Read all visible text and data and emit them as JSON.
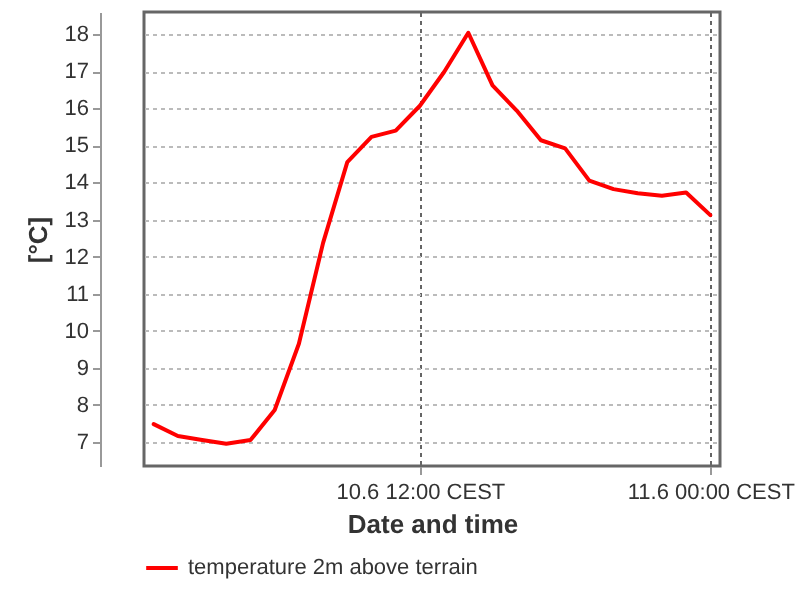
{
  "chart_data": {
    "type": "line",
    "xlabel": "Date and time",
    "ylabel": "[°C]",
    "categories": [
      null,
      null,
      null,
      null,
      null,
      null,
      null,
      null,
      null,
      null,
      null,
      "10.6 12:00 CEST",
      null,
      null,
      null,
      null,
      null,
      null,
      null,
      null,
      null,
      null,
      null,
      "11.6 00:00 CEST"
    ],
    "series": [
      {
        "name": "temperature 2m above terrain",
        "color": "#ff0000",
        "values": [
          7.48,
          7.16,
          7.05,
          6.95,
          7.05,
          7.86,
          9.65,
          12.37,
          14.55,
          15.23,
          15.4,
          16.07,
          16.98,
          18.04,
          16.62,
          15.94,
          15.14,
          14.92,
          14.05,
          13.82,
          13.71,
          13.64,
          13.73,
          13.12
        ]
      }
    ],
    "ylim": [
      6.35,
      18.6
    ],
    "yticks": [
      7,
      8,
      9,
      10,
      11,
      12,
      13,
      14,
      15,
      16,
      17,
      18
    ],
    "grid": true,
    "legend": "bottom",
    "marker": "none",
    "line_style": "solid"
  }
}
